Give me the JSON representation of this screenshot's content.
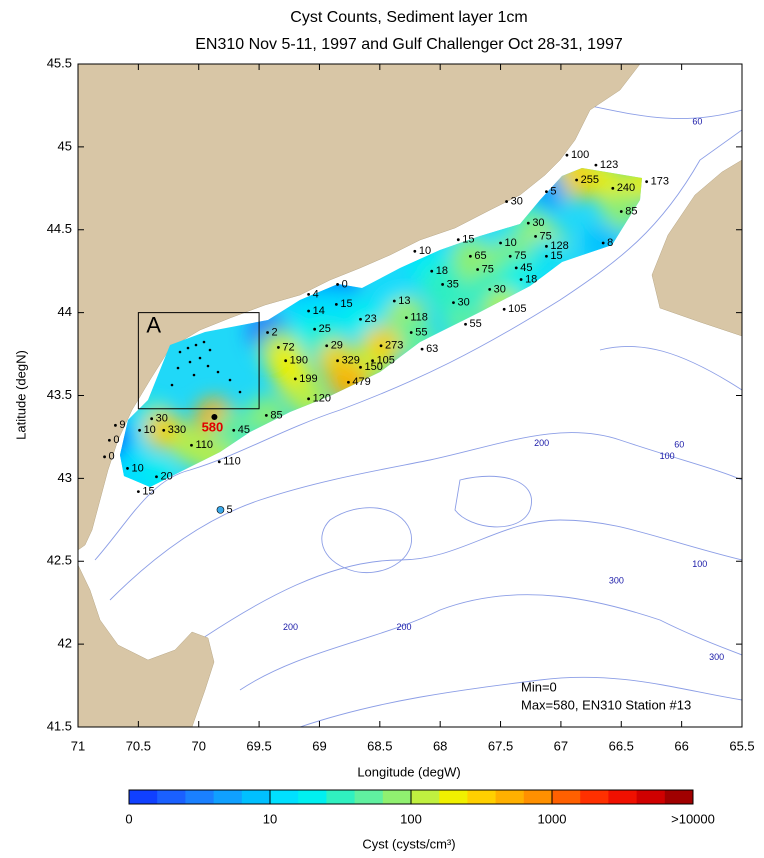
{
  "chart_data": {
    "type": "map",
    "title": "Cyst Counts, Sediment layer 1cm",
    "subtitle": "EN310 Nov 5-11, 1997 and Gulf Challenger Oct 28-31, 1997",
    "xlabel": "Longitude (degW)",
    "ylabel": "Latitude (degN)",
    "xlim": [
      71,
      65.5
    ],
    "ylim": [
      41.5,
      45.5
    ],
    "xticks": [
      71,
      70.5,
      70,
      69.5,
      69,
      68.5,
      68,
      67.5,
      67,
      66.5,
      66,
      65.5
    ],
    "yticks": [
      41.5,
      42,
      42.5,
      43,
      43.5,
      44,
      44.5,
      45,
      45.5
    ],
    "stations": [
      {
        "lon": 66.95,
        "lat": 44.95,
        "value": 100
      },
      {
        "lon": 66.71,
        "lat": 44.89,
        "value": 123
      },
      {
        "lon": 66.87,
        "lat": 44.8,
        "value": 255
      },
      {
        "lon": 66.57,
        "lat": 44.75,
        "value": 240
      },
      {
        "lon": 66.29,
        "lat": 44.79,
        "value": 173
      },
      {
        "lon": 67.12,
        "lat": 44.73,
        "value": 5
      },
      {
        "lon": 66.5,
        "lat": 44.61,
        "value": 85
      },
      {
        "lon": 67.45,
        "lat": 44.67,
        "value": 30
      },
      {
        "lon": 67.27,
        "lat": 44.54,
        "value": 30
      },
      {
        "lon": 67.21,
        "lat": 44.46,
        "value": 75
      },
      {
        "lon": 67.12,
        "lat": 44.4,
        "value": 128
      },
      {
        "lon": 67.5,
        "lat": 44.42,
        "value": 10
      },
      {
        "lon": 67.85,
        "lat": 44.44,
        "value": 15
      },
      {
        "lon": 66.65,
        "lat": 44.42,
        "value": 8
      },
      {
        "lon": 67.12,
        "lat": 44.34,
        "value": 15
      },
      {
        "lon": 68.21,
        "lat": 44.37,
        "value": 10
      },
      {
        "lon": 67.75,
        "lat": 44.34,
        "value": 65
      },
      {
        "lon": 67.42,
        "lat": 44.34,
        "value": 75
      },
      {
        "lon": 67.37,
        "lat": 44.27,
        "value": 45
      },
      {
        "lon": 68.07,
        "lat": 44.25,
        "value": 18
      },
      {
        "lon": 67.69,
        "lat": 44.26,
        "value": 75
      },
      {
        "lon": 67.33,
        "lat": 44.2,
        "value": 18
      },
      {
        "lon": 67.98,
        "lat": 44.17,
        "value": 35
      },
      {
        "lon": 67.59,
        "lat": 44.14,
        "value": 30
      },
      {
        "lon": 68.85,
        "lat": 44.17,
        "value": 0
      },
      {
        "lon": 69.09,
        "lat": 44.11,
        "value": 4
      },
      {
        "lon": 68.38,
        "lat": 44.07,
        "value": 13
      },
      {
        "lon": 67.89,
        "lat": 44.06,
        "value": 30
      },
      {
        "lon": 67.47,
        "lat": 44.02,
        "value": 105
      },
      {
        "lon": 68.86,
        "lat": 44.05,
        "value": 15
      },
      {
        "lon": 69.09,
        "lat": 44.01,
        "value": 14
      },
      {
        "lon": 68.66,
        "lat": 43.96,
        "value": 23
      },
      {
        "lon": 68.28,
        "lat": 43.97,
        "value": 118
      },
      {
        "lon": 67.79,
        "lat": 43.93,
        "value": 55
      },
      {
        "lon": 69.43,
        "lat": 43.88,
        "value": 2
      },
      {
        "lon": 69.04,
        "lat": 43.9,
        "value": 25
      },
      {
        "lon": 68.24,
        "lat": 43.88,
        "value": 55
      },
      {
        "lon": 69.34,
        "lat": 43.79,
        "value": 72
      },
      {
        "lon": 68.94,
        "lat": 43.8,
        "value": 29
      },
      {
        "lon": 68.56,
        "lat": 43.71,
        "value": 105
      },
      {
        "lon": 68.49,
        "lat": 43.8,
        "value": 273
      },
      {
        "lon": 68.15,
        "lat": 43.78,
        "value": 63
      },
      {
        "lon": 69.28,
        "lat": 43.71,
        "value": 190
      },
      {
        "lon": 68.85,
        "lat": 43.71,
        "value": 329
      },
      {
        "lon": 68.66,
        "lat": 43.67,
        "value": 150
      },
      {
        "lon": 69.2,
        "lat": 43.6,
        "value": 199
      },
      {
        "lon": 68.76,
        "lat": 43.58,
        "value": 479
      },
      {
        "lon": 69.09,
        "lat": 43.48,
        "value": 120
      },
      {
        "lon": 69.44,
        "lat": 43.38,
        "value": 85
      },
      {
        "lon": 70.39,
        "lat": 43.36,
        "value": 30
      },
      {
        "lon": 70.69,
        "lat": 43.32,
        "value": 9
      },
      {
        "lon": 70.49,
        "lat": 43.29,
        "value": 10
      },
      {
        "lon": 70.29,
        "lat": 43.29,
        "value": 330
      },
      {
        "lon": 69.87,
        "lat": 43.37,
        "value": 580
      },
      {
        "lon": 69.71,
        "lat": 43.29,
        "value": 45
      },
      {
        "lon": 70.74,
        "lat": 43.23,
        "value": 0
      },
      {
        "lon": 70.06,
        "lat": 43.2,
        "value": 110
      },
      {
        "lon": 70.78,
        "lat": 43.13,
        "value": 0
      },
      {
        "lon": 69.83,
        "lat": 43.1,
        "value": 110
      },
      {
        "lon": 70.59,
        "lat": 43.06,
        "value": 10
      },
      {
        "lon": 70.35,
        "lat": 43.01,
        "value": 20
      },
      {
        "lon": 70.5,
        "lat": 42.92,
        "value": 15
      },
      {
        "lon": 69.82,
        "lat": 42.81,
        "value": 5,
        "color": "#3aa8e8"
      }
    ],
    "contour_labels": [
      {
        "value": 60,
        "lon": 65.87,
        "lat": 45.15
      },
      {
        "value": 200,
        "lon": 67.16,
        "lat": 43.21
      },
      {
        "value": 60,
        "lon": 66.02,
        "lat": 43.2
      },
      {
        "value": 100,
        "lon": 66.12,
        "lat": 43.13
      },
      {
        "value": 300,
        "lon": 66.54,
        "lat": 42.38
      },
      {
        "value": 100,
        "lon": 65.85,
        "lat": 42.48
      },
      {
        "value": 200,
        "lon": 69.24,
        "lat": 42.1
      },
      {
        "value": 200,
        "lon": 68.3,
        "lat": 42.1
      },
      {
        "value": 300,
        "lon": 65.71,
        "lat": 41.92
      }
    ],
    "inset_box": {
      "label": "A",
      "lon": [
        70.5,
        69.5
      ],
      "lat": [
        43.42,
        44.0
      ]
    },
    "annotations": [
      "Min=0",
      "Max=580, EN310 Station #13"
    ],
    "colorbar": {
      "label": "Cyst (cysts/cm³)",
      "scale": "log",
      "ticks": [
        0,
        10,
        100,
        1000,
        {
          "value": 10000,
          "label": ">10000"
        }
      ],
      "colors": [
        "#1040ff",
        "#1a60ff",
        "#1a80ff",
        "#10a0ff",
        "#00c0ff",
        "#00e0ff",
        "#00f0f0",
        "#30f0c0",
        "#60f0a0",
        "#90f070",
        "#c0f040",
        "#f0f000",
        "#ffd000",
        "#ffb000",
        "#ff9000",
        "#ff6000",
        "#ff3000",
        "#f01000",
        "#d00000",
        "#a00000"
      ]
    }
  }
}
